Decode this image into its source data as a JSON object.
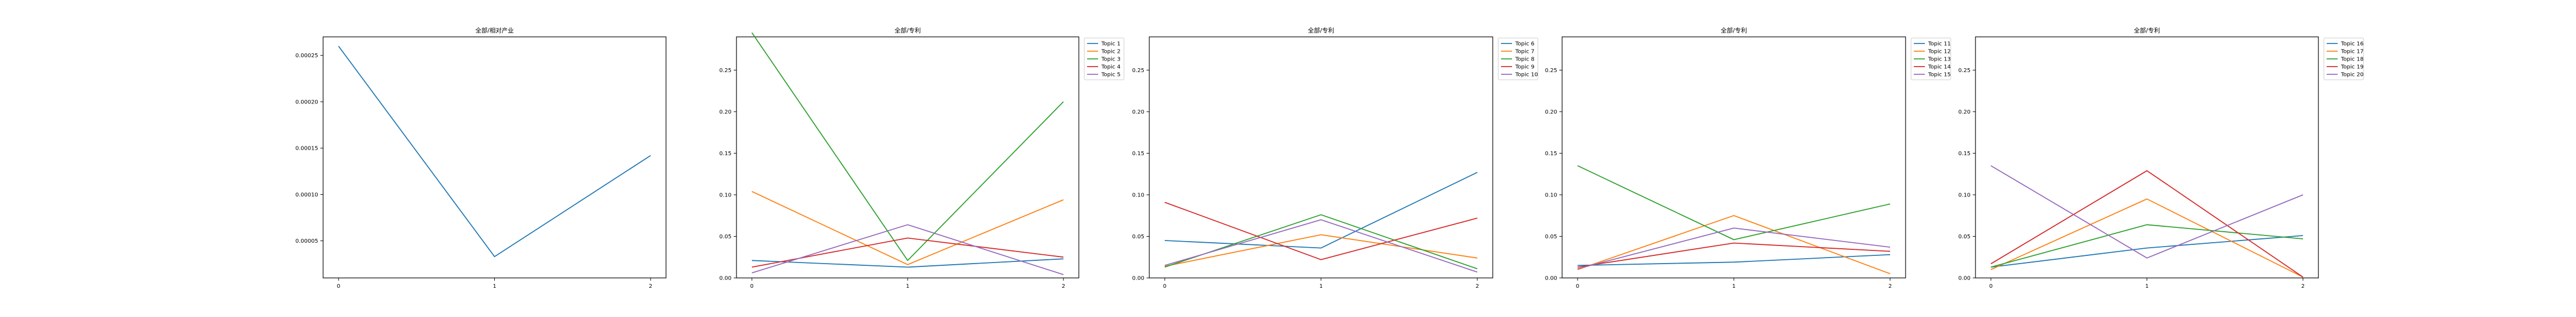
{
  "figure": {
    "series_colors": [
      "#1f77b4",
      "#ff7f0e",
      "#2ca02c",
      "#d62728",
      "#9467bd"
    ]
  },
  "chart_data": [
    {
      "type": "line",
      "title": "全部/相对产业",
      "x": [
        0,
        1,
        2
      ],
      "xticks": [
        "0",
        "1",
        "2"
      ],
      "yticks": [
        "0.00005",
        "0.00010",
        "0.00015",
        "0.00020",
        "0.00025"
      ],
      "ylim": [
        1e-05,
        0.00027
      ],
      "grid": false,
      "legend": null,
      "series": [
        {
          "name": "",
          "color": "#1f77b4",
          "values": [
            0.00026,
            3.3e-05,
            0.000142
          ]
        }
      ]
    },
    {
      "type": "line",
      "title": "全部/专利",
      "x": [
        0,
        1,
        2
      ],
      "xticks": [
        "0",
        "1",
        "2"
      ],
      "yticks": [
        "0.00",
        "0.05",
        "0.10",
        "0.15",
        "0.20",
        "0.25"
      ],
      "ylim": [
        0,
        0.29
      ],
      "grid": false,
      "legend": "outside-right",
      "series": [
        {
          "name": "Topic 1",
          "color": "#1f77b4",
          "values": [
            0.021,
            0.013,
            0.023
          ]
        },
        {
          "name": "Topic 2",
          "color": "#ff7f0e",
          "values": [
            0.104,
            0.016,
            0.094
          ]
        },
        {
          "name": "Topic 3",
          "color": "#2ca02c",
          "values": [
            0.295,
            0.021,
            0.212
          ]
        },
        {
          "name": "Topic 4",
          "color": "#d62728",
          "values": [
            0.013,
            0.048,
            0.025
          ]
        },
        {
          "name": "Topic 5",
          "color": "#9467bd",
          "values": [
            0.006,
            0.064,
            0.004
          ]
        }
      ]
    },
    {
      "type": "line",
      "title": "全部/专利",
      "x": [
        0,
        1,
        2
      ],
      "xticks": [
        "0",
        "1",
        "2"
      ],
      "yticks": [
        "0.00",
        "0.05",
        "0.10",
        "0.15",
        "0.20",
        "0.25"
      ],
      "ylim": [
        0,
        0.29
      ],
      "grid": false,
      "legend": "outside-right",
      "series": [
        {
          "name": "Topic 6",
          "color": "#1f77b4",
          "values": [
            0.045,
            0.036,
            0.127
          ]
        },
        {
          "name": "Topic 7",
          "color": "#ff7f0e",
          "values": [
            0.014,
            0.052,
            0.024
          ]
        },
        {
          "name": "Topic 8",
          "color": "#2ca02c",
          "values": [
            0.013,
            0.076,
            0.011
          ]
        },
        {
          "name": "Topic 9",
          "color": "#d62728",
          "values": [
            0.091,
            0.022,
            0.072
          ]
        },
        {
          "name": "Topic 10",
          "color": "#9467bd",
          "values": [
            0.015,
            0.07,
            0.007
          ]
        }
      ]
    },
    {
      "type": "line",
      "title": "全部/专利",
      "x": [
        0,
        1,
        2
      ],
      "xticks": [
        "0",
        "1",
        "2"
      ],
      "yticks": [
        "0.00",
        "0.05",
        "0.10",
        "0.15",
        "0.20",
        "0.25"
      ],
      "ylim": [
        0,
        0.29
      ],
      "grid": false,
      "legend": "outside-right",
      "series": [
        {
          "name": "Topic 11",
          "color": "#1f77b4",
          "values": [
            0.015,
            0.019,
            0.028
          ]
        },
        {
          "name": "Topic 12",
          "color": "#ff7f0e",
          "values": [
            0.01,
            0.075,
            0.005
          ]
        },
        {
          "name": "Topic 13",
          "color": "#2ca02c",
          "values": [
            0.135,
            0.046,
            0.089
          ]
        },
        {
          "name": "Topic 14",
          "color": "#d62728",
          "values": [
            0.013,
            0.042,
            0.032
          ]
        },
        {
          "name": "Topic 15",
          "color": "#9467bd",
          "values": [
            0.011,
            0.06,
            0.037
          ]
        }
      ]
    },
    {
      "type": "line",
      "title": "全部/专利",
      "x": [
        0,
        1,
        2
      ],
      "xticks": [
        "0",
        "1",
        "2"
      ],
      "yticks": [
        "0.00",
        "0.05",
        "0.10",
        "0.15",
        "0.20",
        "0.25"
      ],
      "ylim": [
        0,
        0.29
      ],
      "grid": false,
      "legend": "outside-right",
      "series": [
        {
          "name": "Topic 16",
          "color": "#1f77b4",
          "values": [
            0.013,
            0.036,
            0.051
          ]
        },
        {
          "name": "Topic 17",
          "color": "#ff7f0e",
          "values": [
            0.01,
            0.095,
            0.001
          ]
        },
        {
          "name": "Topic 18",
          "color": "#2ca02c",
          "values": [
            0.013,
            0.064,
            0.047
          ]
        },
        {
          "name": "Topic 19",
          "color": "#d62728",
          "values": [
            0.017,
            0.129,
            0.001
          ]
        },
        {
          "name": "Topic 20",
          "color": "#9467bd",
          "values": [
            0.135,
            0.024,
            0.1
          ]
        }
      ]
    }
  ]
}
